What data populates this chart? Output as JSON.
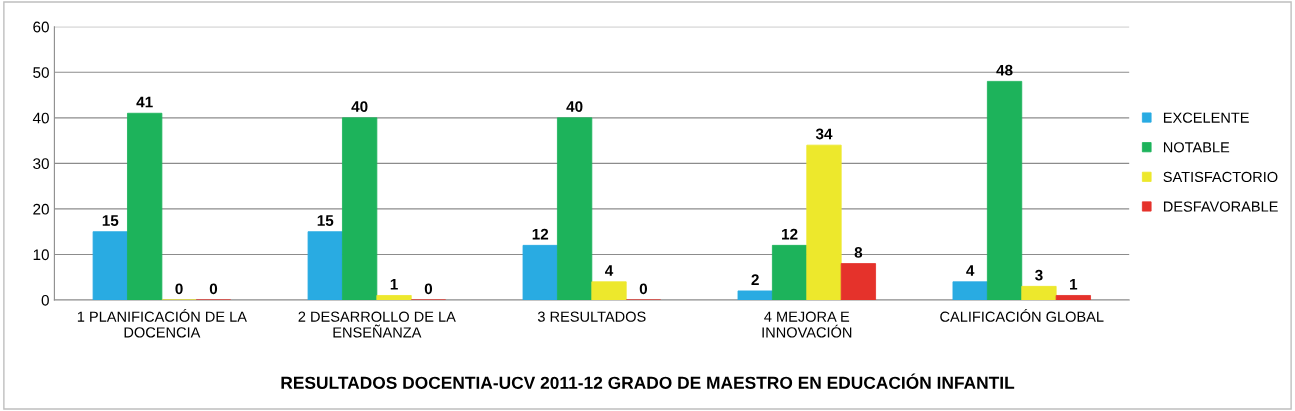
{
  "chart_data": {
    "type": "bar",
    "title": "RESULTADOS DOCENTIA-UCV 2011-12 GRADO DE MAESTRO EN EDUCACIÓN INFANTIL",
    "categories": [
      "1 PLANIFICACIÓN DE LA\nDOCENCIA",
      "2 DESARROLLO DE LA\nENSEÑANZA",
      "3 RESULTADOS",
      "4 MEJORA E\nINNOVACIÓN",
      "CALIFICACIÓN GLOBAL"
    ],
    "series": [
      {
        "name": "EXCELENTE",
        "color": "#29abe2",
        "values": [
          15,
          15,
          12,
          2,
          4
        ]
      },
      {
        "name": "NOTABLE",
        "color": "#1db35b",
        "values": [
          41,
          40,
          40,
          12,
          48
        ]
      },
      {
        "name": "SATISFACTORIO",
        "color": "#ede82c",
        "values": [
          0,
          1,
          4,
          34,
          3
        ]
      },
      {
        "name": "DESFAVORABLE",
        "color": "#e5322b",
        "values": [
          0,
          0,
          0,
          8,
          1
        ]
      }
    ],
    "ylim": [
      0,
      60
    ],
    "yticks": [
      0,
      10,
      20,
      30,
      40,
      50,
      60
    ],
    "grid": "y",
    "legend": "right",
    "data_labels": true
  }
}
